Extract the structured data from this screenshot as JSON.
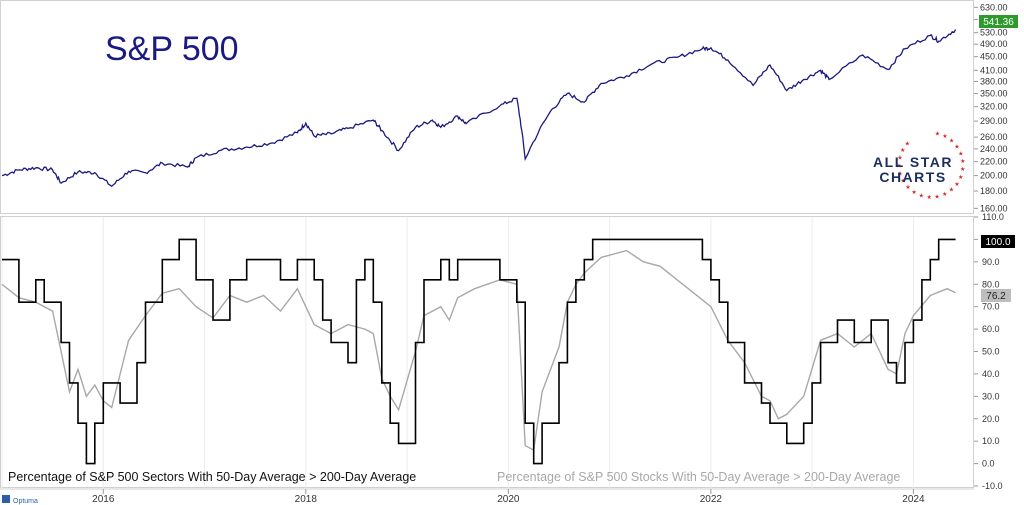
{
  "chart_data": [
    {
      "type": "line",
      "title": "S&P 500",
      "y_scale": "log",
      "ylim": [
        155,
        640
      ],
      "y_ticks": [
        "160.00",
        "180.00",
        "200.00",
        "220.00",
        "240.00",
        "260.00",
        "290.00",
        "320.00",
        "350.00",
        "380.00",
        "410.00",
        "450.00",
        "490.00",
        "530.00",
        "580.00",
        "630.00"
      ],
      "last_value_label": "541.36",
      "last_value_color": "#2e9a2e",
      "series": [
        {
          "color": "#1a1a80",
          "points": [
            [
              "2015-01",
              200
            ],
            [
              "2015-03",
              208
            ],
            [
              "2015-05",
              211
            ],
            [
              "2015-07",
              208
            ],
            [
              "2015-08",
              190
            ],
            [
              "2015-10",
              205
            ],
            [
              "2015-12",
              204
            ],
            [
              "2016-02",
              186
            ],
            [
              "2016-04",
              206
            ],
            [
              "2016-06",
              204
            ],
            [
              "2016-08",
              218
            ],
            [
              "2016-11",
              212
            ],
            [
              "2016-12",
              226
            ],
            [
              "2017-03",
              238
            ],
            [
              "2017-06",
              243
            ],
            [
              "2017-09",
              250
            ],
            [
              "2017-12",
              268
            ],
            [
              "2018-01",
              286
            ],
            [
              "2018-02",
              262
            ],
            [
              "2018-04",
              266
            ],
            [
              "2018-06",
              276
            ],
            [
              "2018-09",
              292
            ],
            [
              "2018-10",
              272
            ],
            [
              "2018-12",
              237
            ],
            [
              "2019-02",
              278
            ],
            [
              "2019-04",
              292
            ],
            [
              "2019-05",
              278
            ],
            [
              "2019-07",
              300
            ],
            [
              "2019-08",
              285
            ],
            [
              "2019-12",
              322
            ],
            [
              "2020-02",
              339
            ],
            [
              "2020-03",
              224
            ],
            [
              "2020-06",
              310
            ],
            [
              "2020-08",
              350
            ],
            [
              "2020-10",
              330
            ],
            [
              "2020-12",
              375
            ],
            [
              "2021-03",
              395
            ],
            [
              "2021-06",
              428
            ],
            [
              "2021-09",
              448
            ],
            [
              "2021-12",
              475
            ],
            [
              "2022-01",
              478
            ],
            [
              "2022-03",
              440
            ],
            [
              "2022-06",
              370
            ],
            [
              "2022-08",
              425
            ],
            [
              "2022-10",
              357
            ],
            [
              "2022-12",
              385
            ],
            [
              "2023-02",
              410
            ],
            [
              "2023-03",
              385
            ],
            [
              "2023-07",
              455
            ],
            [
              "2023-10",
              412
            ],
            [
              "2023-12",
              475
            ],
            [
              "2024-03",
              520
            ],
            [
              "2024-04",
              500
            ],
            [
              "2024-06",
              541.36
            ]
          ]
        }
      ]
    },
    {
      "type": "line",
      "ylim": [
        -10,
        110
      ],
      "y_ticks": [
        "-10.0",
        "0.0",
        "10.0",
        "20.0",
        "30.0",
        "40.0",
        "50.0",
        "60.0",
        "70.0",
        "80.0",
        "90.0",
        "100.0",
        "110.0"
      ],
      "x_ticks": [
        "2016",
        "2018",
        "2020",
        "2022",
        "2024"
      ],
      "series": [
        {
          "name": "Percentage of S&P 500 Sectors With 50-Day Average > 200-Day Average",
          "color": "#000000",
          "last_value_label": "100.0",
          "points": [
            [
              "2015-01",
              91
            ],
            [
              "2015-03",
              72
            ],
            [
              "2015-05",
              82
            ],
            [
              "2015-06",
              72
            ],
            [
              "2015-08",
              54
            ],
            [
              "2015-09",
              36
            ],
            [
              "2015-10",
              18
            ],
            [
              "2015-11",
              0
            ],
            [
              "2015-12",
              18
            ],
            [
              "2016-01",
              36
            ],
            [
              "2016-03",
              27
            ],
            [
              "2016-05",
              45
            ],
            [
              "2016-06",
              72
            ],
            [
              "2016-08",
              91
            ],
            [
              "2016-10",
              100
            ],
            [
              "2016-12",
              82
            ],
            [
              "2017-02",
              64
            ],
            [
              "2017-04",
              82
            ],
            [
              "2017-06",
              91
            ],
            [
              "2017-10",
              82
            ],
            [
              "2017-12",
              91
            ],
            [
              "2018-02",
              82
            ],
            [
              "2018-03",
              64
            ],
            [
              "2018-04",
              54
            ],
            [
              "2018-06",
              45
            ],
            [
              "2018-07",
              82
            ],
            [
              "2018-08",
              91
            ],
            [
              "2018-09",
              72
            ],
            [
              "2018-10",
              36
            ],
            [
              "2018-11",
              18
            ],
            [
              "2018-12",
              9
            ],
            [
              "2019-02",
              54
            ],
            [
              "2019-03",
              82
            ],
            [
              "2019-05",
              91
            ],
            [
              "2019-06",
              82
            ],
            [
              "2019-07",
              91
            ],
            [
              "2019-12",
              82
            ],
            [
              "2020-02",
              72
            ],
            [
              "2020-03",
              18
            ],
            [
              "2020-04",
              0
            ],
            [
              "2020-05",
              18
            ],
            [
              "2020-07",
              45
            ],
            [
              "2020-08",
              72
            ],
            [
              "2020-09",
              82
            ],
            [
              "2020-10",
              91
            ],
            [
              "2020-11",
              100
            ],
            [
              "2021-06",
              100
            ],
            [
              "2021-09",
              100
            ],
            [
              "2021-12",
              91
            ],
            [
              "2022-01",
              82
            ],
            [
              "2022-02",
              72
            ],
            [
              "2022-03",
              54
            ],
            [
              "2022-05",
              36
            ],
            [
              "2022-07",
              27
            ],
            [
              "2022-08",
              18
            ],
            [
              "2022-10",
              9
            ],
            [
              "2022-12",
              18
            ],
            [
              "2023-01",
              36
            ],
            [
              "2023-02",
              54
            ],
            [
              "2023-04",
              64
            ],
            [
              "2023-06",
              54
            ],
            [
              "2023-08",
              64
            ],
            [
              "2023-10",
              45
            ],
            [
              "2023-11",
              36
            ],
            [
              "2023-12",
              54
            ],
            [
              "2024-01",
              64
            ],
            [
              "2024-02",
              82
            ],
            [
              "2024-03",
              91
            ],
            [
              "2024-04",
              100
            ],
            [
              "2024-06",
              100
            ]
          ]
        },
        {
          "name": "Percentage of S&P 500 Stocks With 50-Day Average > 200-Day Average",
          "color": "#a8a8a8",
          "last_value_label": "76.2",
          "points": [
            [
              "2015-01",
              80
            ],
            [
              "2015-03",
              74
            ],
            [
              "2015-05",
              72
            ],
            [
              "2015-07",
              68
            ],
            [
              "2015-08",
              50
            ],
            [
              "2015-09",
              32
            ],
            [
              "2015-10",
              42
            ],
            [
              "2015-11",
              30
            ],
            [
              "2015-12",
              35
            ],
            [
              "2016-01",
              28
            ],
            [
              "2016-02",
              25
            ],
            [
              "2016-04",
              55
            ],
            [
              "2016-06",
              66
            ],
            [
              "2016-08",
              76
            ],
            [
              "2016-10",
              78
            ],
            [
              "2016-12",
              70
            ],
            [
              "2017-02",
              65
            ],
            [
              "2017-04",
              75
            ],
            [
              "2017-06",
              72
            ],
            [
              "2017-08",
              75
            ],
            [
              "2017-10",
              68
            ],
            [
              "2017-12",
              78
            ],
            [
              "2018-02",
              62
            ],
            [
              "2018-04",
              58
            ],
            [
              "2018-06",
              62
            ],
            [
              "2018-08",
              60
            ],
            [
              "2018-09",
              58
            ],
            [
              "2018-10",
              38
            ],
            [
              "2018-11",
              30
            ],
            [
              "2018-12",
              24
            ],
            [
              "2019-02",
              50
            ],
            [
              "2019-03",
              66
            ],
            [
              "2019-05",
              70
            ],
            [
              "2019-06",
              64
            ],
            [
              "2019-07",
              74
            ],
            [
              "2019-09",
              78
            ],
            [
              "2019-12",
              82
            ],
            [
              "2020-02",
              80
            ],
            [
              "2020-03",
              8
            ],
            [
              "2020-04",
              6
            ],
            [
              "2020-05",
              32
            ],
            [
              "2020-07",
              52
            ],
            [
              "2020-08",
              72
            ],
            [
              "2020-09",
              80
            ],
            [
              "2020-10",
              85
            ],
            [
              "2020-12",
              92
            ],
            [
              "2021-03",
              95
            ],
            [
              "2021-05",
              90
            ],
            [
              "2021-07",
              88
            ],
            [
              "2021-09",
              82
            ],
            [
              "2021-11",
              76
            ],
            [
              "2022-01",
              70
            ],
            [
              "2022-03",
              55
            ],
            [
              "2022-05",
              45
            ],
            [
              "2022-07",
              30
            ],
            [
              "2022-08",
              28
            ],
            [
              "2022-09",
              20
            ],
            [
              "2022-10",
              22
            ],
            [
              "2022-12",
              30
            ],
            [
              "2023-02",
              55
            ],
            [
              "2023-04",
              58
            ],
            [
              "2023-06",
              52
            ],
            [
              "2023-08",
              58
            ],
            [
              "2023-10",
              42
            ],
            [
              "2023-11",
              40
            ],
            [
              "2023-12",
              58
            ],
            [
              "2024-01",
              66
            ],
            [
              "2024-03",
              75
            ],
            [
              "2024-05",
              78
            ],
            [
              "2024-06",
              76.2
            ]
          ]
        }
      ]
    }
  ],
  "logo": {
    "line1": "ALL STAR",
    "line2": "CHARTS"
  },
  "footer": {
    "brand_text": "Optuma"
  }
}
